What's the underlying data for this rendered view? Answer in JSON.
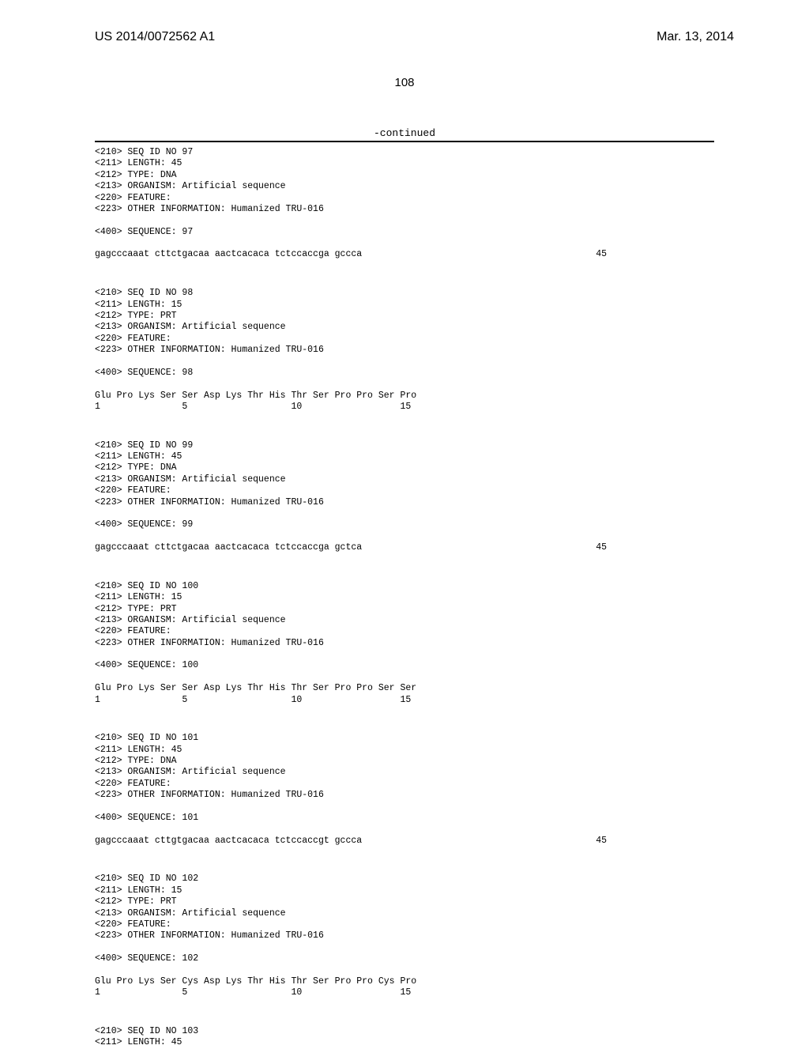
{
  "header": {
    "publication_number": "US 2014/0072562 A1",
    "publication_date": "Mar. 13, 2014"
  },
  "page_number": "108",
  "continued_label": "-continued",
  "entries": [
    {
      "meta": [
        "<210> SEQ ID NO 97",
        "<211> LENGTH: 45",
        "<212> TYPE: DNA",
        "<213> ORGANISM: Artificial sequence",
        "<220> FEATURE:",
        "<223> OTHER INFORMATION: Humanized TRU-016"
      ],
      "seq_header": "<400> SEQUENCE: 97",
      "seq_lines": [
        {
          "left": "gagcccaaat cttctgacaa aactcacaca tctccaccga gccca",
          "right": "45"
        }
      ]
    },
    {
      "meta": [
        "<210> SEQ ID NO 98",
        "<211> LENGTH: 15",
        "<212> TYPE: PRT",
        "<213> ORGANISM: Artificial sequence",
        "<220> FEATURE:",
        "<223> OTHER INFORMATION: Humanized TRU-016"
      ],
      "seq_header": "<400> SEQUENCE: 98",
      "seq_lines": [
        {
          "left": "Glu Pro Lys Ser Ser Asp Lys Thr His Thr Ser Pro Pro Ser Pro",
          "right": ""
        },
        {
          "left": "1               5                   10                  15",
          "right": ""
        }
      ]
    },
    {
      "meta": [
        "<210> SEQ ID NO 99",
        "<211> LENGTH: 45",
        "<212> TYPE: DNA",
        "<213> ORGANISM: Artificial sequence",
        "<220> FEATURE:",
        "<223> OTHER INFORMATION: Humanized TRU-016"
      ],
      "seq_header": "<400> SEQUENCE: 99",
      "seq_lines": [
        {
          "left": "gagcccaaat cttctgacaa aactcacaca tctccaccga gctca",
          "right": "45"
        }
      ]
    },
    {
      "meta": [
        "<210> SEQ ID NO 100",
        "<211> LENGTH: 15",
        "<212> TYPE: PRT",
        "<213> ORGANISM: Artificial sequence",
        "<220> FEATURE:",
        "<223> OTHER INFORMATION: Humanized TRU-016"
      ],
      "seq_header": "<400> SEQUENCE: 100",
      "seq_lines": [
        {
          "left": "Glu Pro Lys Ser Ser Asp Lys Thr His Thr Ser Pro Pro Ser Ser",
          "right": ""
        },
        {
          "left": "1               5                   10                  15",
          "right": ""
        }
      ]
    },
    {
      "meta": [
        "<210> SEQ ID NO 101",
        "<211> LENGTH: 45",
        "<212> TYPE: DNA",
        "<213> ORGANISM: Artificial sequence",
        "<220> FEATURE:",
        "<223> OTHER INFORMATION: Humanized TRU-016"
      ],
      "seq_header": "<400> SEQUENCE: 101",
      "seq_lines": [
        {
          "left": "gagcccaaat cttgtgacaa aactcacaca tctccaccgt gccca",
          "right": "45"
        }
      ]
    },
    {
      "meta": [
        "<210> SEQ ID NO 102",
        "<211> LENGTH: 15",
        "<212> TYPE: PRT",
        "<213> ORGANISM: Artificial sequence",
        "<220> FEATURE:",
        "<223> OTHER INFORMATION: Humanized TRU-016"
      ],
      "seq_header": "<400> SEQUENCE: 102",
      "seq_lines": [
        {
          "left": "Glu Pro Lys Ser Cys Asp Lys Thr His Thr Ser Pro Pro Cys Pro",
          "right": ""
        },
        {
          "left": "1               5                   10                  15",
          "right": ""
        }
      ]
    },
    {
      "meta": [
        "<210> SEQ ID NO 103",
        "<211> LENGTH: 45"
      ],
      "seq_header": "",
      "seq_lines": []
    }
  ]
}
